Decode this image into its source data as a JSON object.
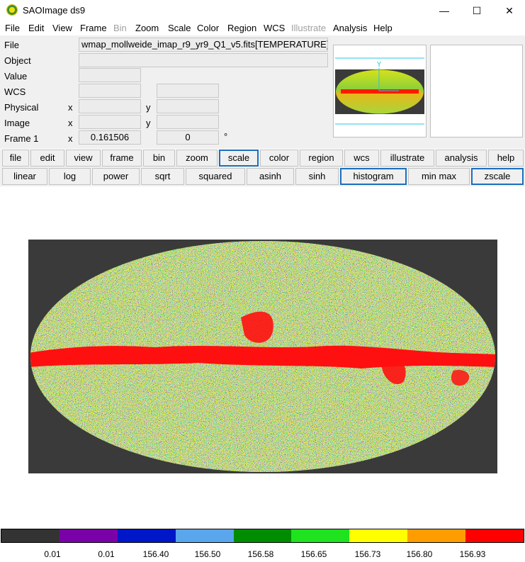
{
  "window": {
    "title": "SAOImage ds9",
    "minimize": "—",
    "maximize": "☐",
    "close": "✕"
  },
  "menubar": [
    "File",
    "Edit",
    "View",
    "Frame",
    "Bin",
    "Zoom",
    "Scale",
    "Color",
    "Region",
    "WCS",
    "Illustrate",
    "Analysis",
    "Help"
  ],
  "info": {
    "file_label": "File",
    "file_value": "wmap_mollweide_imap_r9_yr9_Q1_v5.fits[TEMPERATURE]",
    "object_label": "Object",
    "value_label": "Value",
    "wcs_label": "WCS",
    "physical_label": "Physical",
    "image_label": "Image",
    "frame_label": "Frame 1",
    "x": "x",
    "y": "y",
    "frame_x_value": "0.161506",
    "frame_y_value": "0",
    "degree": "°"
  },
  "buttons_top": [
    "file",
    "edit",
    "view",
    "frame",
    "bin",
    "zoom",
    "scale",
    "color",
    "region",
    "wcs",
    "illustrate",
    "analysis",
    "help"
  ],
  "buttons_top_active": "scale",
  "buttons_scale": [
    "linear",
    "log",
    "power",
    "sqrt",
    "squared",
    "asinh",
    "sinh",
    "histogram",
    "min max",
    "zscale"
  ],
  "buttons_scale_active": [
    "histogram",
    "zscale"
  ],
  "colorbar": {
    "colors": [
      "#333333",
      "#7a00a8",
      "#0017c9",
      "#5aa6ec",
      "#008c00",
      "#1ee31e",
      "#ffff00",
      "#ff9c00",
      "#ff0000"
    ],
    "labels": [
      "0.01",
      "0.01",
      "156.40",
      "156.50",
      "156.58",
      "156.65",
      "156.73",
      "156.80",
      "156.93"
    ]
  }
}
